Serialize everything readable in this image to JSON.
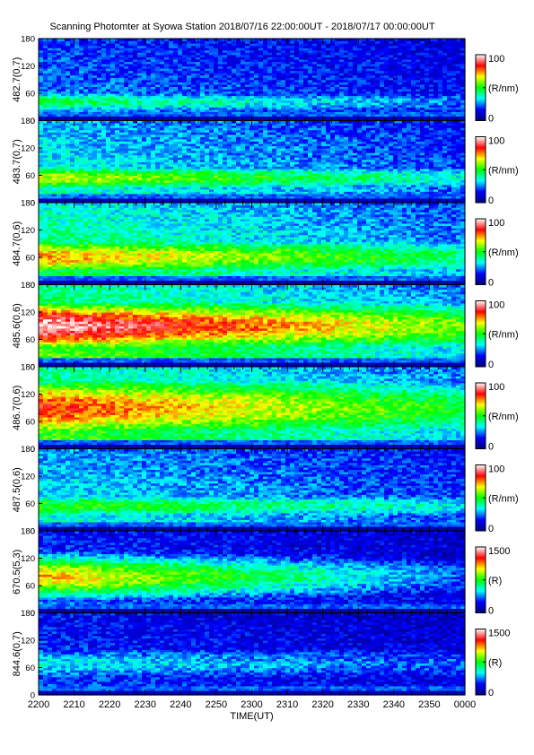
{
  "title": "Scanning Photomter at Syowa Station  2018/07/16 22:00:00UT - 2018/07/17 00:00:00UT",
  "chart_data": {
    "type": "heatmap",
    "xlabel": "TIME(UT)",
    "x_ticks": [
      "2200",
      "2210",
      "2220",
      "2230",
      "2240",
      "2250",
      "2300",
      "2310",
      "2320",
      "2330",
      "2340",
      "2350",
      "0000"
    ],
    "y_ticks": [
      "0",
      "60",
      "120",
      "180"
    ],
    "ylim": [
      0,
      180
    ],
    "colormap": [
      "#00007f",
      "#0000ff",
      "#00ffff",
      "#00ff00",
      "#ffff00",
      "#ff0000",
      "#ffffff"
    ],
    "panels": [
      {
        "ylabel": "482.7(0.7)",
        "cbar_max": "100",
        "cbar_min": "0",
        "cbar_unit": "(R/nm)",
        "band_center": 42,
        "band_intensity": 0.46,
        "background": 0.28,
        "band_width": 25,
        "decay": 0.45
      },
      {
        "ylabel": "483.7(0.7)",
        "cbar_max": "100",
        "cbar_min": "0",
        "cbar_unit": "(R/nm)",
        "band_center": 55,
        "band_intensity": 0.64,
        "background": 0.4,
        "band_width": 30,
        "decay": 0.45
      },
      {
        "ylabel": "484.7(0.6)",
        "cbar_max": "100",
        "cbar_min": "0",
        "cbar_unit": "(R/nm)",
        "band_center": 62,
        "band_intensity": 0.74,
        "background": 0.5,
        "band_width": 45,
        "decay": 0.42
      },
      {
        "ylabel": "485.6(0.6)",
        "cbar_max": "100",
        "cbar_min": "0",
        "cbar_unit": "(R/nm)",
        "band_center": 90,
        "band_intensity": 0.97,
        "background": 0.58,
        "band_width": 60,
        "decay": 0.42
      },
      {
        "ylabel": "486.7(0.6)",
        "cbar_max": "100",
        "cbar_min": "0",
        "cbar_unit": "(R/nm)",
        "band_center": 90,
        "band_intensity": 0.82,
        "background": 0.56,
        "band_width": 75,
        "decay": 0.42
      },
      {
        "ylabel": "487.5(0.6)",
        "cbar_max": "100",
        "cbar_min": "0",
        "cbar_unit": "(R/nm)",
        "band_center": 55,
        "band_intensity": 0.52,
        "background": 0.38,
        "band_width": 30,
        "decay": 0.35
      },
      {
        "ylabel": "670.5(5.3)",
        "cbar_max": "1500",
        "cbar_min": "0",
        "cbar_unit": "(R)",
        "band_center": 80,
        "band_intensity": 0.72,
        "background": 0.24,
        "band_width": 50,
        "decay": 0.7
      },
      {
        "ylabel": "844.6(0.7)",
        "cbar_max": "1500",
        "cbar_min": "0",
        "cbar_unit": "(R)",
        "band_center": 70,
        "band_intensity": 0.34,
        "background": 0.22,
        "band_width": 40,
        "decay": 0.35
      }
    ]
  }
}
